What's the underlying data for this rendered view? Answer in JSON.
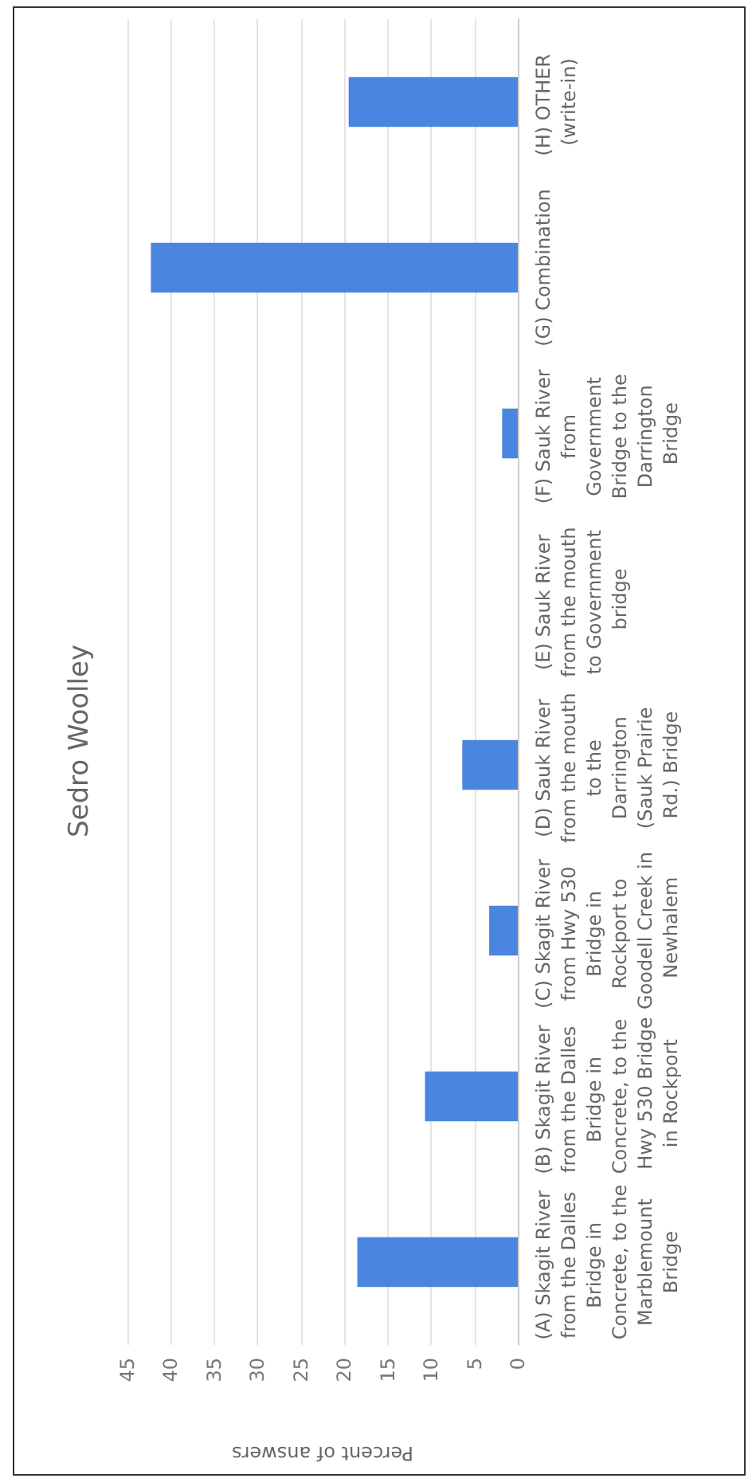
{
  "chart_data": {
    "type": "bar",
    "orientation": "horizontal",
    "title": "Sedro Woolley",
    "xlabel": "Percent of answers",
    "categories": [
      "(H) OTHER (write-in)",
      "(G) Combination",
      "(F) Sauk River from Government Bridge to the Darrington Bridge",
      "(E) Sauk River from the mouth to Government bridge",
      "(D) Sauk River from the mouth to the Darrington (Sauk Prairie Rd.) Bridge",
      "(C) Skagit River from Hwy 530 Bridge in Rockport to Goodell Creek in Newhalem",
      "(B) Skagit River from the Dalles Bridge in Concrete, to the Hwy 530 Bridge in Rockport",
      "(A) Skagit River from the Dalles Bridge in Concrete, to the Marblemount Bridge"
    ],
    "values": [
      19.5,
      42.3,
      1.8,
      0,
      6.4,
      3.3,
      10.7,
      18.5
    ],
    "color": "#4a86e0",
    "xlim": [
      45,
      0
    ],
    "xticks": [
      45,
      40,
      35,
      30,
      25,
      20,
      15,
      10,
      5,
      0
    ],
    "grid": "x"
  }
}
